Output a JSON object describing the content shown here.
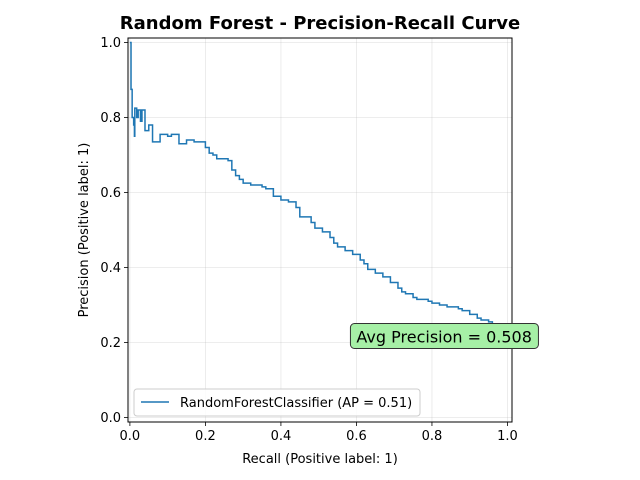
{
  "chart_data": {
    "type": "line",
    "title": "Random Forest - Precision-Recall Curve",
    "xlabel": "Recall (Positive label: 1)",
    "ylabel": "Precision (Positive label: 1)",
    "xlim": [
      -0.005,
      1.012
    ],
    "ylim": [
      -0.012,
      1.012
    ],
    "xticks": [
      "0.0",
      "0.2",
      "0.4",
      "0.6",
      "0.8",
      "1.0"
    ],
    "yticks": [
      "0.0",
      "0.2",
      "0.4",
      "0.6",
      "0.8",
      "1.0"
    ],
    "grid": true,
    "legend_position": "lower-left",
    "line_color": "#1f77b4",
    "series": [
      {
        "name": "RandomForestClassifier (AP = 0.51)",
        "step": true,
        "points": [
          [
            0.0,
            1.0
          ],
          [
            0.003,
            0.875
          ],
          [
            0.006,
            0.8
          ],
          [
            0.01,
            0.78
          ],
          [
            0.012,
            0.75
          ],
          [
            0.013,
            0.825
          ],
          [
            0.018,
            0.8
          ],
          [
            0.022,
            0.82
          ],
          [
            0.028,
            0.79
          ],
          [
            0.032,
            0.82
          ],
          [
            0.04,
            0.765
          ],
          [
            0.05,
            0.78
          ],
          [
            0.06,
            0.735
          ],
          [
            0.08,
            0.755
          ],
          [
            0.1,
            0.75
          ],
          [
            0.11,
            0.755
          ],
          [
            0.13,
            0.73
          ],
          [
            0.15,
            0.74
          ],
          [
            0.17,
            0.735
          ],
          [
            0.2,
            0.72
          ],
          [
            0.21,
            0.705
          ],
          [
            0.22,
            0.7
          ],
          [
            0.23,
            0.69
          ],
          [
            0.26,
            0.685
          ],
          [
            0.27,
            0.66
          ],
          [
            0.28,
            0.645
          ],
          [
            0.29,
            0.635
          ],
          [
            0.3,
            0.625
          ],
          [
            0.32,
            0.62
          ],
          [
            0.35,
            0.615
          ],
          [
            0.36,
            0.61
          ],
          [
            0.38,
            0.59
          ],
          [
            0.4,
            0.58
          ],
          [
            0.42,
            0.575
          ],
          [
            0.44,
            0.56
          ],
          [
            0.45,
            0.535
          ],
          [
            0.48,
            0.52
          ],
          [
            0.49,
            0.505
          ],
          [
            0.51,
            0.495
          ],
          [
            0.53,
            0.48
          ],
          [
            0.54,
            0.465
          ],
          [
            0.55,
            0.455
          ],
          [
            0.57,
            0.445
          ],
          [
            0.59,
            0.435
          ],
          [
            0.61,
            0.42
          ],
          [
            0.62,
            0.41
          ],
          [
            0.63,
            0.395
          ],
          [
            0.65,
            0.385
          ],
          [
            0.67,
            0.375
          ],
          [
            0.69,
            0.36
          ],
          [
            0.71,
            0.345
          ],
          [
            0.72,
            0.335
          ],
          [
            0.73,
            0.33
          ],
          [
            0.75,
            0.32
          ],
          [
            0.76,
            0.315
          ],
          [
            0.79,
            0.31
          ],
          [
            0.8,
            0.305
          ],
          [
            0.82,
            0.3
          ],
          [
            0.84,
            0.295
          ],
          [
            0.87,
            0.29
          ],
          [
            0.88,
            0.285
          ],
          [
            0.9,
            0.275
          ],
          [
            0.92,
            0.265
          ],
          [
            0.93,
            0.26
          ],
          [
            0.95,
            0.255
          ],
          [
            0.96,
            0.245
          ],
          [
            0.98,
            0.24
          ],
          [
            1.0,
            0.23
          ]
        ]
      }
    ],
    "annotation": {
      "text": "Avg Precision = 0.508",
      "x": 0.6,
      "y": 0.2,
      "background": "#a6f0a6",
      "border": "#333333"
    }
  }
}
